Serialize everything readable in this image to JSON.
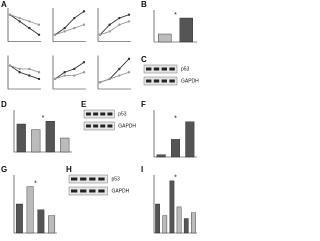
{
  "panels": [
    {
      "letter": "A",
      "type": "lines",
      "ylim": [
        0,
        1
      ],
      "colors": [
        "#333333",
        "#999999"
      ],
      "plots": [
        {
          "series": [
            [
              0.8,
              0.6,
              0.4,
              0.2
            ],
            [
              0.8,
              0.7,
              0.6,
              0.5
            ]
          ]
        },
        {
          "series": [
            [
              0.2,
              0.4,
              0.7,
              0.9
            ],
            [
              0.2,
              0.3,
              0.4,
              0.5
            ]
          ]
        },
        {
          "series": [
            [
              0.2,
              0.5,
              0.7,
              0.8
            ],
            [
              0.2,
              0.3,
              0.5,
              0.6
            ]
          ]
        },
        {
          "series": [
            [
              0.7,
              0.5,
              0.4,
              0.3
            ],
            [
              0.7,
              0.6,
              0.6,
              0.5
            ]
          ]
        },
        {
          "series": [
            [
              0.3,
              0.5,
              0.6,
              0.8
            ],
            [
              0.3,
              0.4,
              0.4,
              0.5
            ]
          ]
        },
        {
          "series": [
            [
              0.2,
              0.3,
              0.6,
              0.9
            ],
            [
              0.2,
              0.3,
              0.4,
              0.5
            ]
          ]
        }
      ]
    },
    {
      "letter": "B",
      "type": "bar",
      "ylim": [
        0,
        4
      ],
      "values": [
        1,
        3
      ],
      "colors": [
        "#bbbbbb",
        "#555555"
      ],
      "note": "*"
    },
    {
      "letter": "C",
      "type": "blot",
      "bands": [
        "p53",
        "GAPDH"
      ]
    },
    {
      "letter": "D",
      "type": "bar",
      "ylim": [
        0,
        1.5
      ],
      "values": [
        1,
        0.8,
        1.1,
        0.5
      ],
      "colors": [
        "#555555",
        "#bbbbbb",
        "#555555",
        "#bbbbbb"
      ],
      "note": "*"
    },
    {
      "letter": "E",
      "type": "blot",
      "bands": [
        "p53",
        "GAPDH"
      ]
    },
    {
      "letter": "F",
      "type": "bar",
      "ylim": [
        0,
        4
      ],
      "values": [
        0.2,
        1.5,
        3
      ],
      "colors": [
        "#555555",
        "#555555",
        "#555555"
      ],
      "note": "*"
    },
    {
      "letter": "G",
      "type": "bar",
      "ylim": [
        0,
        2
      ],
      "values": [
        1,
        1.6,
        0.8,
        0.6
      ],
      "colors": [
        "#555555",
        "#bbbbbb",
        "#555555",
        "#bbbbbb"
      ],
      "note": "*"
    },
    {
      "letter": "H",
      "type": "blot",
      "bands": [
        "p53",
        "GAPDH"
      ]
    },
    {
      "letter": "I",
      "type": "bar",
      "ylim": [
        0,
        2
      ],
      "values": [
        1,
        0.6,
        1.8,
        0.9,
        0.5,
        0.7
      ],
      "colors": [
        "#555555",
        "#bbbbbb",
        "#555555",
        "#bbbbbb",
        "#555555",
        "#bbbbbb"
      ],
      "note": "*"
    }
  ]
}
